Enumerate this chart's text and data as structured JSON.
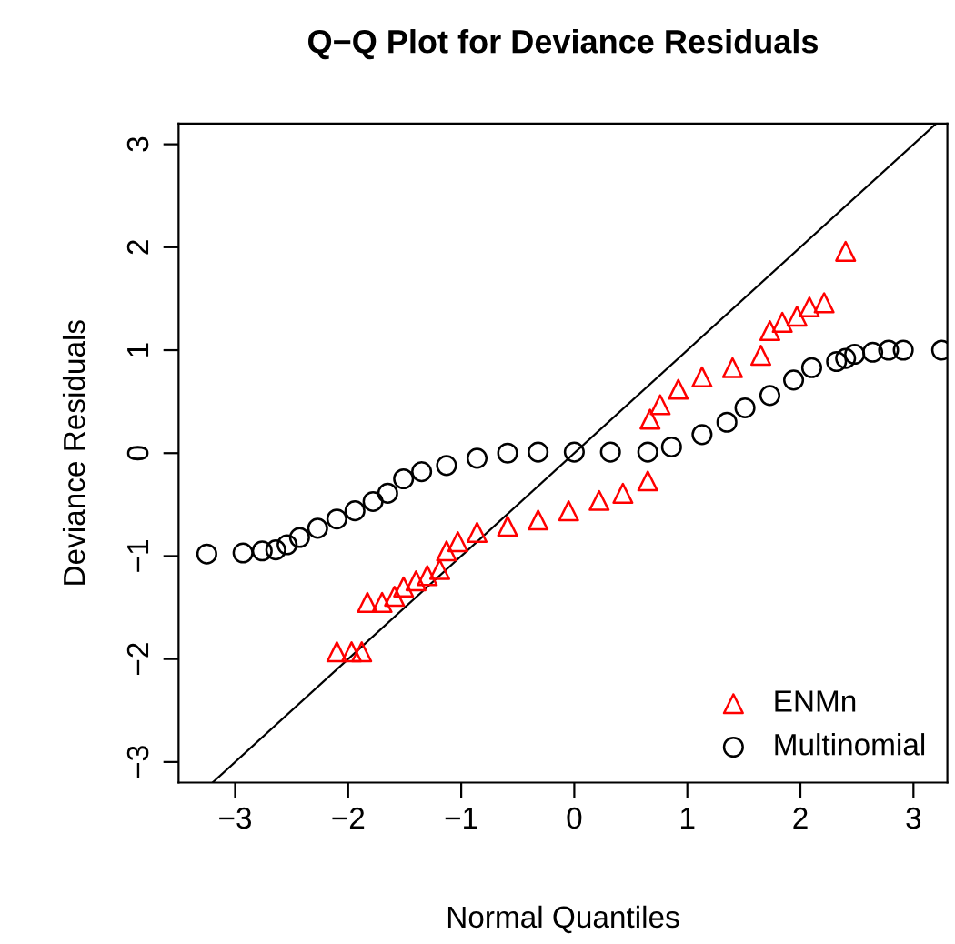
{
  "chart_data": {
    "type": "scatter",
    "title": "Q−Q Plot for Deviance Residuals",
    "xlabel": "Normal Quantiles",
    "ylabel": "Deviance Residuals",
    "xlim": [
      -3.5,
      3.3
    ],
    "ylim": [
      -3.2,
      3.2
    ],
    "xticks": [
      -3,
      -2,
      -1,
      0,
      1,
      2,
      3
    ],
    "yticks": [
      -3,
      -2,
      -1,
      0,
      1,
      2,
      3
    ],
    "grid": false,
    "legend": "bottom right",
    "series": [
      {
        "name": "ENMn",
        "color": "#ff0000",
        "marker": "triangle",
        "x": [
          -2.1,
          -1.97,
          -1.88,
          -1.83,
          -1.7,
          -1.59,
          -1.51,
          -1.4,
          -1.3,
          -1.19,
          -1.13,
          -1.03,
          -0.86,
          -0.59,
          -0.32,
          -0.05,
          0.22,
          0.43,
          0.65,
          0.67,
          0.76,
          0.92,
          1.13,
          1.4,
          1.65,
          1.73,
          1.84,
          1.97,
          2.08,
          2.21,
          2.4
        ],
        "values": [
          -1.93,
          -1.93,
          -1.93,
          -1.45,
          -1.45,
          -1.39,
          -1.3,
          -1.24,
          -1.19,
          -1.13,
          -0.95,
          -0.86,
          -0.77,
          -0.71,
          -0.65,
          -0.56,
          -0.46,
          -0.39,
          -0.27,
          0.33,
          0.47,
          0.62,
          0.74,
          0.83,
          0.95,
          1.19,
          1.27,
          1.33,
          1.42,
          1.46,
          1.96
        ]
      },
      {
        "name": "Multinomial",
        "color": "#000000",
        "marker": "circle",
        "x": [
          -3.25,
          -2.93,
          -2.76,
          -2.64,
          -2.54,
          -2.43,
          -2.27,
          -2.1,
          -1.94,
          -1.78,
          -1.65,
          -1.51,
          -1.35,
          -1.13,
          -0.86,
          -0.59,
          -0.32,
          0,
          0.32,
          0.65,
          0.86,
          1.13,
          1.35,
          1.51,
          1.73,
          1.94,
          2.1,
          2.32,
          2.4,
          2.48,
          2.64,
          2.78,
          2.91,
          3.25
        ],
        "values": [
          -0.98,
          -0.97,
          -0.95,
          -0.94,
          -0.89,
          -0.82,
          -0.73,
          -0.64,
          -0.56,
          -0.47,
          -0.39,
          -0.25,
          -0.18,
          -0.12,
          -0.05,
          0.0,
          0.01,
          0.01,
          0.01,
          0.01,
          0.06,
          0.18,
          0.3,
          0.44,
          0.56,
          0.71,
          0.83,
          0.89,
          0.92,
          0.96,
          0.98,
          1.0,
          1.0,
          1.0
        ]
      },
      {
        "type": "line",
        "color": "#000000",
        "marker": "none",
        "x": [
          -3.2,
          3.2
        ],
        "values": [
          -3.2,
          3.2
        ]
      }
    ]
  }
}
